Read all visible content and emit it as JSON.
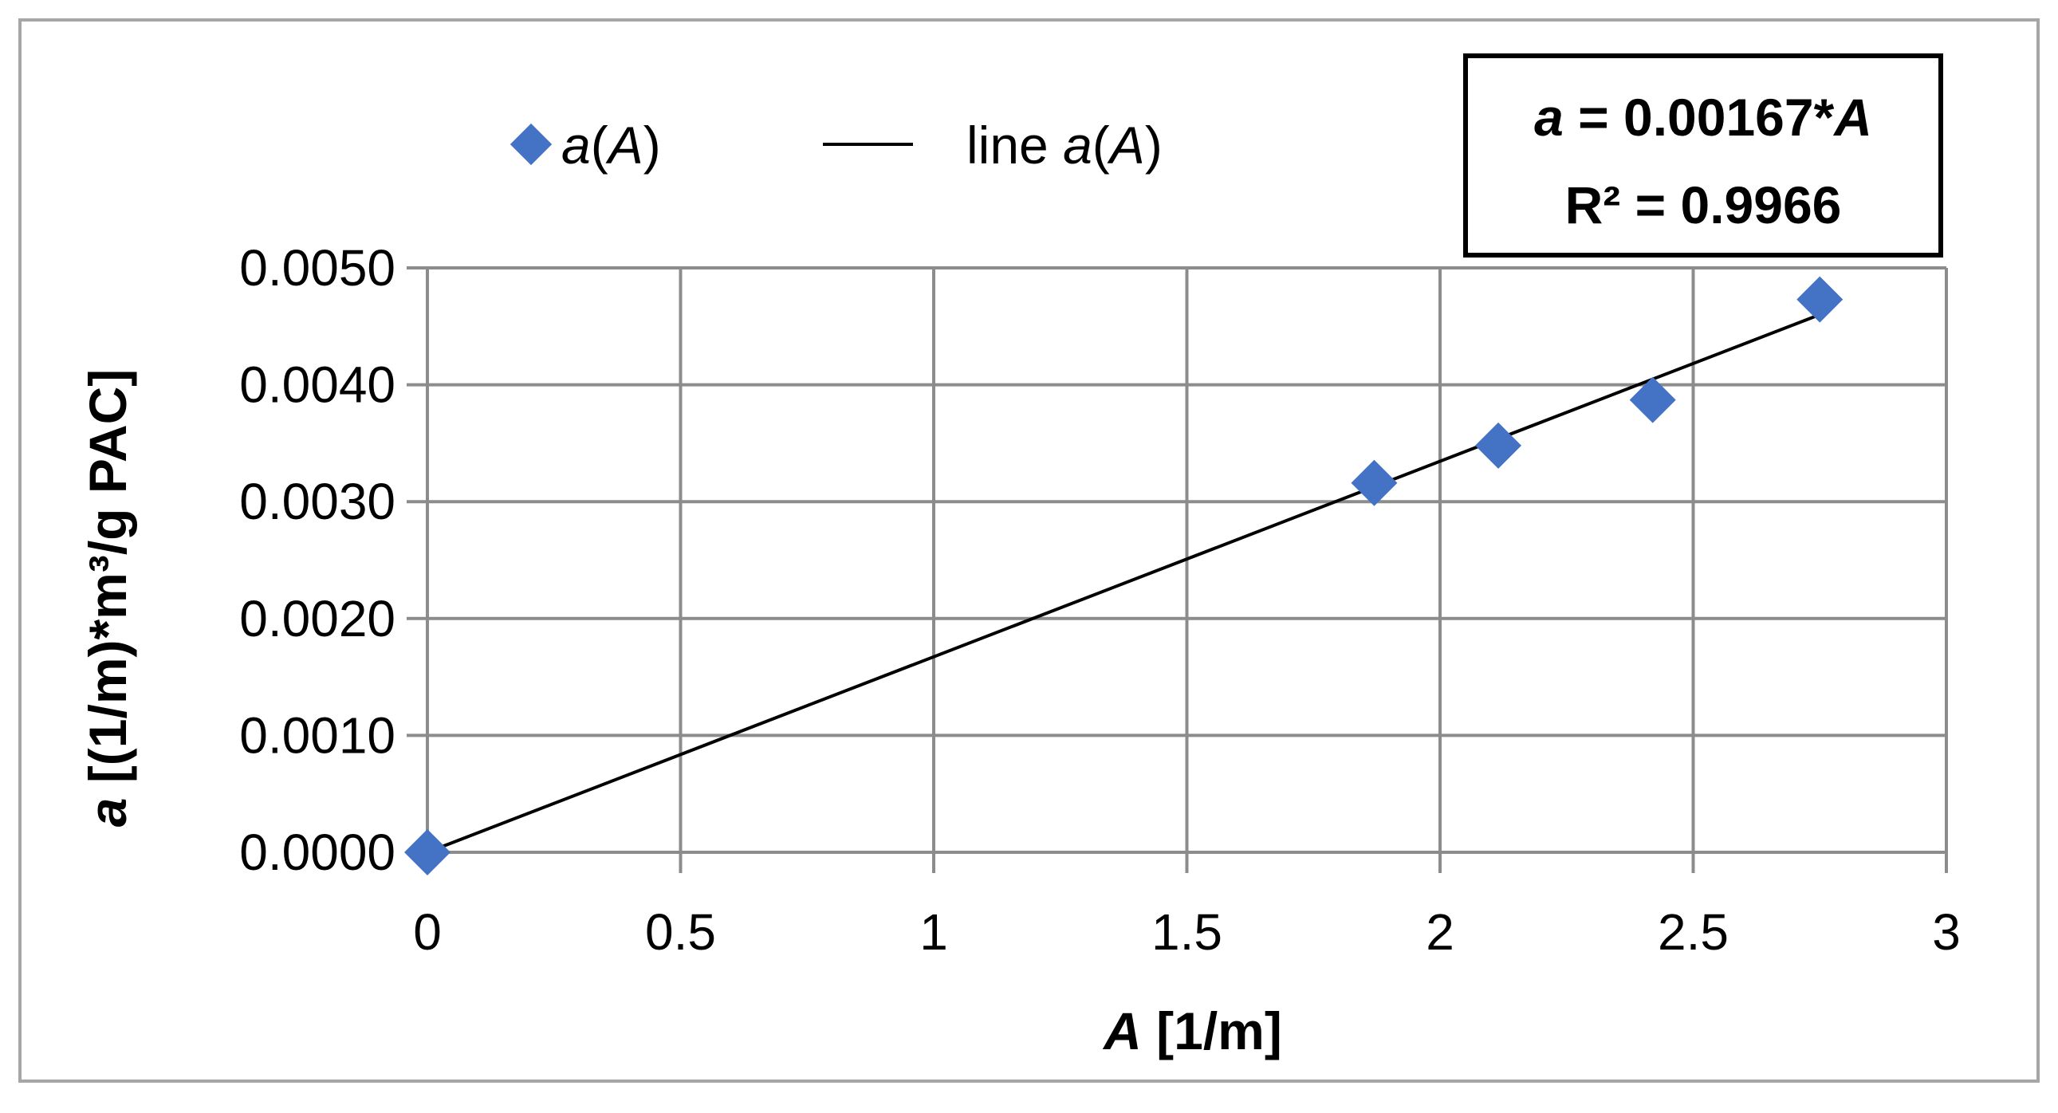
{
  "chart_data": {
    "type": "scatter",
    "xlabel": {
      "var": "A",
      "unit": " [1/m]"
    },
    "ylabel": {
      "var": "a",
      "unit": " [(1/m)*m³/g PAC]"
    },
    "xlim": [
      0,
      3
    ],
    "ylim": [
      0,
      0.005
    ],
    "x_ticks": [
      0,
      0.5,
      1,
      1.5,
      2,
      2.5,
      3
    ],
    "x_tick_labels": [
      "0",
      "0.5",
      "1",
      "1.5",
      "2",
      "2.5",
      "3"
    ],
    "y_ticks": [
      0,
      0.001,
      0.002,
      0.003,
      0.004,
      0.005
    ],
    "y_tick_labels": [
      "0.0000",
      "0.0010",
      "0.0020",
      "0.0030",
      "0.0040",
      "0.0050"
    ],
    "grid": true,
    "legend_position": "top-left",
    "series": [
      {
        "name": {
          "var": "a",
          "open": "(",
          "arg": "A",
          "close": ")"
        },
        "kind": "scatter",
        "marker": "diamond",
        "color": "#4472C4",
        "x": [
          0,
          1.87,
          2.115,
          2.42,
          2.75
        ],
        "y": [
          0,
          0.00316,
          0.00348,
          0.00387,
          0.00473
        ]
      },
      {
        "name": {
          "prefix": "line ",
          "var": "a",
          "open": "(",
          "arg": "A",
          "close": ")"
        },
        "kind": "line",
        "color": "#000000",
        "x": [
          0,
          2.75
        ],
        "y": [
          0,
          0.0046
        ]
      }
    ],
    "annotation": {
      "line1": {
        "var": "a",
        "mid": " = 0.00167*",
        "var2": "A"
      },
      "line2": "R² = 0.9966"
    }
  }
}
